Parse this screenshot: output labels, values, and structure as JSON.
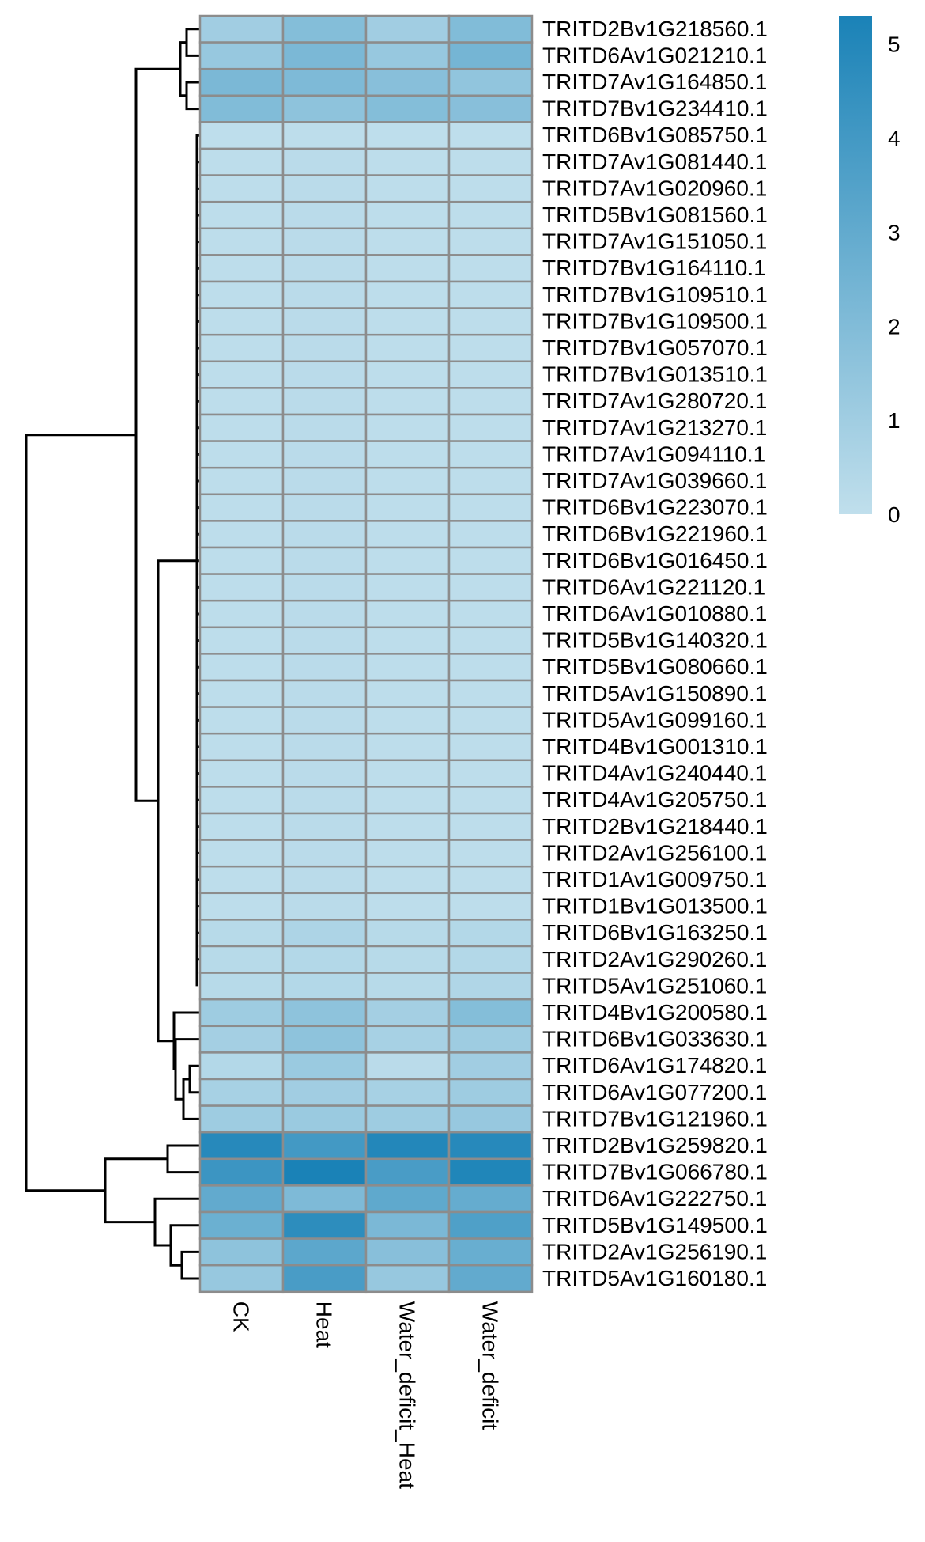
{
  "chart_data": {
    "type": "heatmap",
    "columns": [
      "CK",
      "Heat",
      "Water_deficit_Heat",
      "Water_deficit"
    ],
    "rows": [
      "TRITD2Bv1G218560.1",
      "TRITD6Av1G021210.1",
      "TRITD7Av1G164850.1",
      "TRITD7Bv1G234410.1",
      "TRITD6Bv1G085750.1",
      "TRITD7Av1G081440.1",
      "TRITD7Av1G020960.1",
      "TRITD5Bv1G081560.1",
      "TRITD7Av1G151050.1",
      "TRITD7Bv1G164110.1",
      "TRITD7Bv1G109510.1",
      "TRITD7Bv1G109500.1",
      "TRITD7Bv1G057070.1",
      "TRITD7Bv1G013510.1",
      "TRITD7Av1G280720.1",
      "TRITD7Av1G213270.1",
      "TRITD7Av1G094110.1",
      "TRITD7Av1G039660.1",
      "TRITD6Bv1G223070.1",
      "TRITD6Bv1G221960.1",
      "TRITD6Bv1G016450.1",
      "TRITD6Av1G221120.1",
      "TRITD6Av1G010880.1",
      "TRITD5Bv1G140320.1",
      "TRITD5Bv1G080660.1",
      "TRITD5Av1G150890.1",
      "TRITD5Av1G099160.1",
      "TRITD4Bv1G001310.1",
      "TRITD4Av1G240440.1",
      "TRITD4Av1G205750.1",
      "TRITD2Bv1G218440.1",
      "TRITD2Av1G256100.1",
      "TRITD1Av1G009750.1",
      "TRITD1Bv1G013500.1",
      "TRITD6Bv1G163250.1",
      "TRITD2Av1G290260.1",
      "TRITD5Av1G251060.1",
      "TRITD4Bv1G200580.1",
      "TRITD6Bv1G033630.1",
      "TRITD6Av1G174820.1",
      "TRITD6Av1G077200.1",
      "TRITD7Bv1G121960.1",
      "TRITD2Bv1G259820.1",
      "TRITD7Bv1G066780.1",
      "TRITD6Av1G222750.1",
      "TRITD5Bv1G149500.1",
      "TRITD2Av1G256190.1",
      "TRITD5Av1G160180.1"
    ],
    "values": [
      [
        1.0,
        1.9,
        1.0,
        2.0
      ],
      [
        1.3,
        2.2,
        1.3,
        2.4
      ],
      [
        2.2,
        2.1,
        1.8,
        1.5
      ],
      [
        2.0,
        1.6,
        1.9,
        1.8
      ],
      [
        0.05,
        0.1,
        0.05,
        0.05
      ],
      [
        0.1,
        0.2,
        0.1,
        0.1
      ],
      [
        0.1,
        0.2,
        0.1,
        0.1
      ],
      [
        0.1,
        0.2,
        0.1,
        0.1
      ],
      [
        0.1,
        0.2,
        0.1,
        0.1
      ],
      [
        0.1,
        0.2,
        0.1,
        0.1
      ],
      [
        0.1,
        0.2,
        0.1,
        0.1
      ],
      [
        0.1,
        0.2,
        0.1,
        0.1
      ],
      [
        0.1,
        0.2,
        0.1,
        0.1
      ],
      [
        0.1,
        0.2,
        0.1,
        0.1
      ],
      [
        0.1,
        0.2,
        0.1,
        0.1
      ],
      [
        0.1,
        0.2,
        0.1,
        0.1
      ],
      [
        0.1,
        0.2,
        0.1,
        0.1
      ],
      [
        0.1,
        0.2,
        0.1,
        0.1
      ],
      [
        0.1,
        0.2,
        0.1,
        0.1
      ],
      [
        0.1,
        0.2,
        0.1,
        0.1
      ],
      [
        0.1,
        0.2,
        0.1,
        0.1
      ],
      [
        0.1,
        0.2,
        0.1,
        0.1
      ],
      [
        0.1,
        0.2,
        0.1,
        0.1
      ],
      [
        0.1,
        0.2,
        0.1,
        0.1
      ],
      [
        0.1,
        0.2,
        0.1,
        0.1
      ],
      [
        0.1,
        0.2,
        0.1,
        0.1
      ],
      [
        0.1,
        0.2,
        0.1,
        0.1
      ],
      [
        0.1,
        0.2,
        0.1,
        0.1
      ],
      [
        0.1,
        0.2,
        0.1,
        0.1
      ],
      [
        0.1,
        0.2,
        0.1,
        0.1
      ],
      [
        0.1,
        0.2,
        0.1,
        0.1
      ],
      [
        0.1,
        0.2,
        0.1,
        0.1
      ],
      [
        0.1,
        0.2,
        0.1,
        0.1
      ],
      [
        0.1,
        0.2,
        0.1,
        0.1
      ],
      [
        0.3,
        0.6,
        0.3,
        0.4
      ],
      [
        0.3,
        0.4,
        0.3,
        0.4
      ],
      [
        0.3,
        0.4,
        0.3,
        0.5
      ],
      [
        1.1,
        1.6,
        0.9,
        1.9
      ],
      [
        0.9,
        1.6,
        0.8,
        1.1
      ],
      [
        0.4,
        1.2,
        0.2,
        1.0
      ],
      [
        0.8,
        1.0,
        0.8,
        1.1
      ],
      [
        1.1,
        1.2,
        1.1,
        1.3
      ],
      [
        4.9,
        4.0,
        5.0,
        4.9
      ],
      [
        4.2,
        5.3,
        3.8,
        5.1
      ],
      [
        3.0,
        2.1,
        3.1,
        2.9
      ],
      [
        2.7,
        4.7,
        2.2,
        3.6
      ],
      [
        1.6,
        3.2,
        1.8,
        2.8
      ],
      [
        1.3,
        3.8,
        1.3,
        3.0
      ]
    ],
    "colorbar": {
      "min": 0,
      "max": 5.3,
      "ticks": [
        "0",
        "1",
        "2",
        "3",
        "4",
        "5"
      ],
      "low_color": "#c0dfec",
      "high_color": "#1a82b7"
    },
    "cell_border_color": "#8c8c8c",
    "dendrogram": "rows",
    "title": "",
    "xlabel": "",
    "ylabel": ""
  }
}
